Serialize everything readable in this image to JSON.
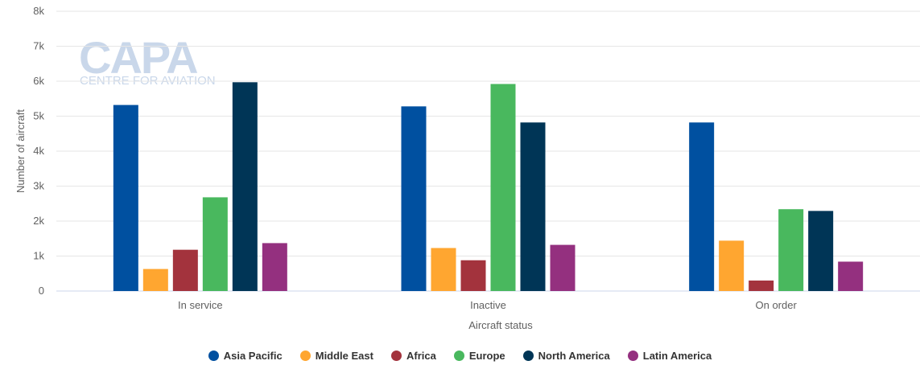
{
  "watermark": {
    "brand": "CAPA",
    "tagline": "CENTRE FOR AVIATION"
  },
  "chart_data": {
    "type": "bar",
    "title": "",
    "xlabel": "Aircraft status",
    "ylabel": "Number of aircraft",
    "categories": [
      "In service",
      "Inactive",
      "On order"
    ],
    "ylim": [
      0,
      8000
    ],
    "yticks": [
      0,
      1000,
      2000,
      3000,
      4000,
      5000,
      6000,
      7000,
      8000
    ],
    "ytick_labels": [
      "0",
      "1k",
      "2k",
      "3k",
      "4k",
      "5k",
      "6k",
      "7k",
      "8k"
    ],
    "grid": true,
    "legend_position": "bottom-center",
    "series": [
      {
        "name": "Asia Pacific",
        "color": "#0050a0",
        "values": [
          5320,
          5280,
          4820
        ]
      },
      {
        "name": "Middle East",
        "color": "#ffa630",
        "values": [
          630,
          1230,
          1440
        ]
      },
      {
        "name": "Africa",
        "color": "#a3333d",
        "values": [
          1180,
          880,
          300
        ]
      },
      {
        "name": "Europe",
        "color": "#49b85e",
        "values": [
          2680,
          5920,
          2340
        ]
      },
      {
        "name": "North America",
        "color": "#003556",
        "values": [
          5970,
          4820,
          2290
        ]
      },
      {
        "name": "Latin America",
        "color": "#94307f",
        "values": [
          1370,
          1320,
          840
        ]
      }
    ]
  }
}
